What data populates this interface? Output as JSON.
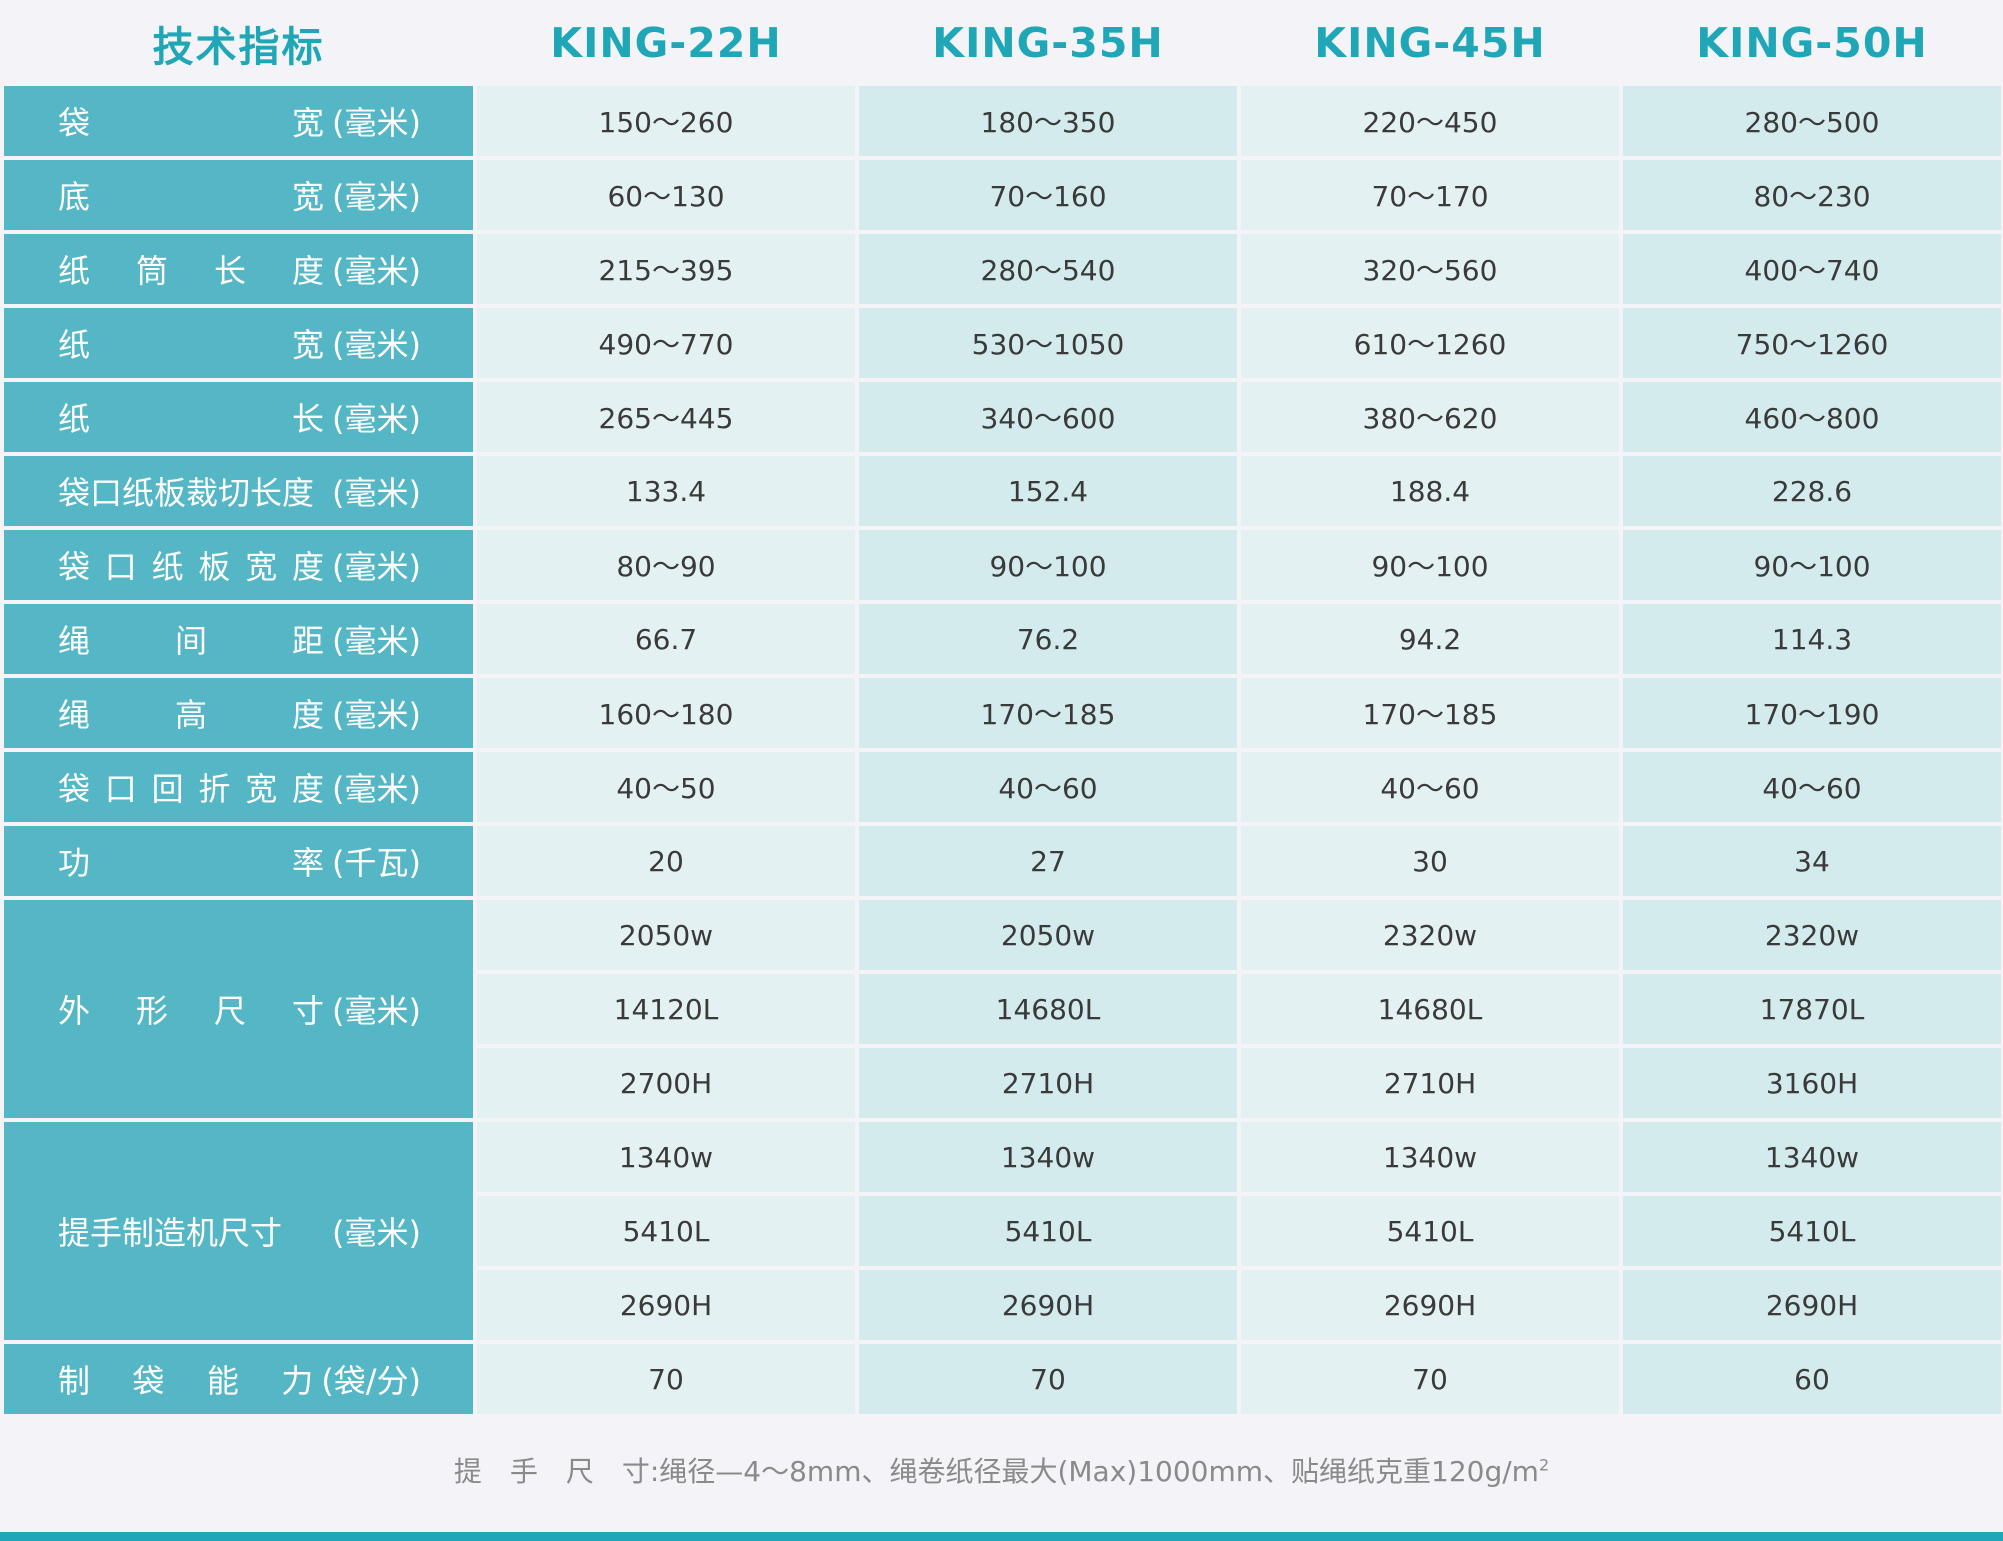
{
  "header": {
    "first": "技术指标",
    "models": [
      "KING-22H",
      "KING-35H",
      "KING-45H",
      "KING-50H"
    ]
  },
  "rows": [
    {
      "label": [
        "袋",
        "宽"
      ],
      "unit": "(毫米)",
      "values": [
        "150～260",
        "180～350",
        "220～450",
        "280～500"
      ]
    },
    {
      "label": [
        "底",
        "宽"
      ],
      "unit": "(毫米)",
      "values": [
        "60～130",
        "70～160",
        "70～170",
        "80～230"
      ]
    },
    {
      "label": [
        "纸",
        "筒",
        "长",
        "度"
      ],
      "unit": "(毫米)",
      "values": [
        "215～395",
        "280～540",
        "320～560",
        "400～740"
      ]
    },
    {
      "label": [
        "纸",
        "宽"
      ],
      "unit": "(毫米)",
      "values": [
        "490～770",
        "530～1050",
        "610～1260",
        "750～1260"
      ]
    },
    {
      "label": [
        "纸",
        "长"
      ],
      "unit": "(毫米)",
      "values": [
        "265～445",
        "340～600",
        "380～620",
        "460～800"
      ]
    },
    {
      "label": [
        "袋口纸板裁切长度"
      ],
      "unit": "(毫米)",
      "values": [
        "133.4",
        "152.4",
        "188.4",
        "228.6"
      ]
    },
    {
      "label": [
        "袋",
        "口",
        "纸",
        "板",
        "宽",
        "度"
      ],
      "unit": "(毫米)",
      "values": [
        "80～90",
        "90～100",
        "90～100",
        "90～100"
      ]
    },
    {
      "label": [
        "绳",
        "间",
        "距"
      ],
      "unit": "(毫米)",
      "values": [
        "66.7",
        "76.2",
        "94.2",
        "114.3"
      ]
    },
    {
      "label": [
        "绳",
        "高",
        "度"
      ],
      "unit": "(毫米)",
      "values": [
        "160～180",
        "170～185",
        "170～185",
        "170～190"
      ]
    },
    {
      "label": [
        "袋",
        "口",
        "回",
        "折",
        "宽",
        "度"
      ],
      "unit": "(毫米)",
      "values": [
        "40～50",
        "40～60",
        "40～60",
        "40～60"
      ]
    },
    {
      "label": [
        "功",
        "率"
      ],
      "unit": "(千瓦)",
      "values": [
        "20",
        "27",
        "30",
        "34"
      ]
    }
  ],
  "dimensions": {
    "label": [
      "外",
      "形",
      "尺",
      "寸"
    ],
    "unit": "(毫米)",
    "sub": [
      [
        "2050w",
        "2050w",
        "2320w",
        "2320w"
      ],
      [
        "14120L",
        "14680L",
        "14680L",
        "17870L"
      ],
      [
        "2700H",
        "2710H",
        "2710H",
        "3160H"
      ]
    ]
  },
  "handle_machine": {
    "label": [
      "提手制造机尺寸"
    ],
    "unit": "(毫米)",
    "sub": [
      [
        "1340w",
        "1340w",
        "1340w",
        "1340w"
      ],
      [
        "5410L",
        "5410L",
        "5410L",
        "5410L"
      ],
      [
        "2690H",
        "2690H",
        "2690H",
        "2690H"
      ]
    ]
  },
  "capacity": {
    "label": [
      "制",
      "袋",
      "能",
      "力"
    ],
    "unit": "(袋/分)",
    "values": [
      "70",
      "70",
      "70",
      "60"
    ]
  },
  "footnote": {
    "text": "提　手　尺　寸:绳径—4～8mm、绳卷纸径最大(Max)1000mm、贴绳纸克重120g/m",
    "sup": "2"
  },
  "colors": {
    "accent": "#1fa7b8",
    "label_bg": "#55b6c6",
    "cell_a": "#e4f1f2",
    "cell_b": "#d3ebed",
    "page_bg": "#f4f4f8"
  }
}
